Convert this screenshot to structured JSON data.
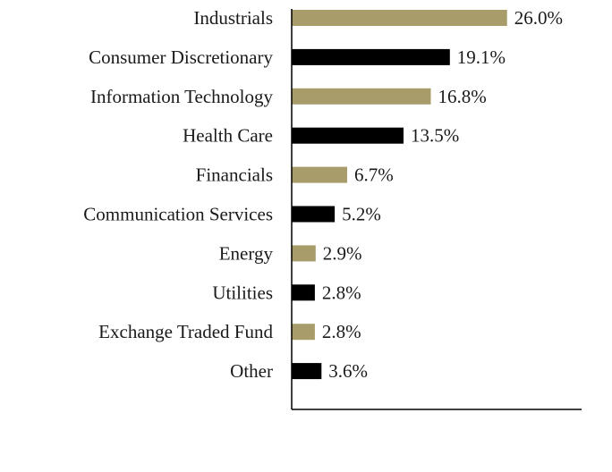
{
  "chart_data": {
    "type": "bar",
    "orientation": "horizontal",
    "categories": [
      "Industrials",
      "Consumer Discretionary",
      "Information Technology",
      "Health Care",
      "Financials",
      "Communication Services",
      "Energy",
      "Utilities",
      "Exchange Traded Fund",
      "Other"
    ],
    "values": [
      26.0,
      19.1,
      16.8,
      13.5,
      6.7,
      5.2,
      2.9,
      2.8,
      2.8,
      3.6
    ],
    "value_labels": [
      "26.0%",
      "19.1%",
      "16.8%",
      "13.5%",
      "6.7%",
      "5.2%",
      "2.9%",
      "2.8%",
      "2.8%",
      "3.6%"
    ],
    "bar_colors": [
      "#a89c6a",
      "#000000",
      "#a89c6a",
      "#000000",
      "#a89c6a",
      "#000000",
      "#a89c6a",
      "#000000",
      "#a89c6a",
      "#000000"
    ],
    "xlim": [
      0,
      35
    ],
    "grid": false,
    "legend": "none"
  }
}
